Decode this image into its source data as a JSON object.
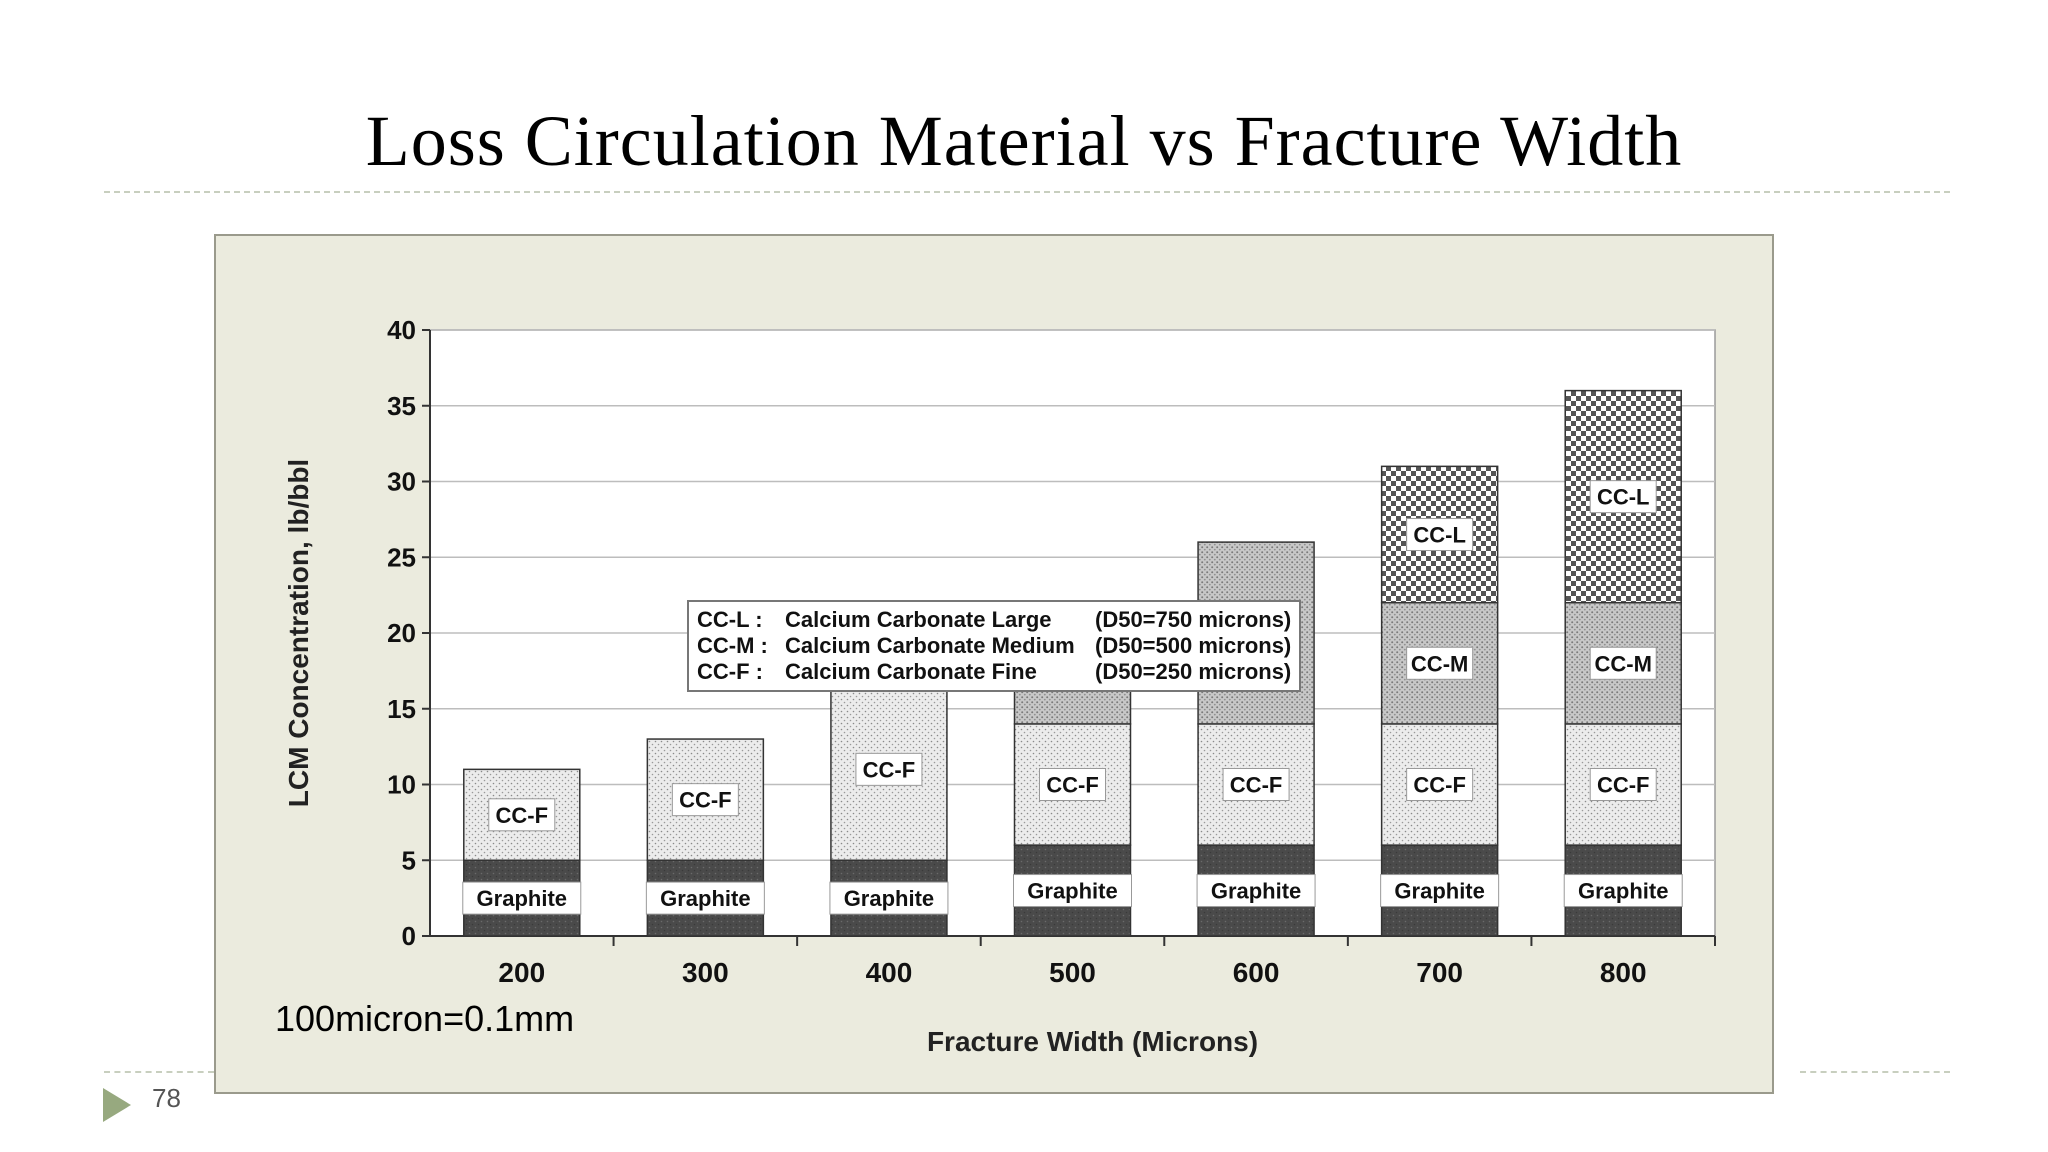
{
  "slide": {
    "title": "Loss Circulation Material vs Fracture Width",
    "page_number": "78",
    "note": "100micron=0.1mm"
  },
  "legend": {
    "rows": [
      {
        "code": "CC-L  :",
        "name": "Calcium Carbonate Large",
        "d50": "(D50=750 microns)"
      },
      {
        "code": "CC-M :",
        "name": "Calcium Carbonate Medium",
        "d50": "(D50=500 microns)"
      },
      {
        "code": "CC-F  :",
        "name": "Calcium Carbonate Fine",
        "d50": "(D50=250 microns)"
      }
    ]
  },
  "chart_data": {
    "type": "bar",
    "stacked": true,
    "title": "",
    "xlabel": "Fracture Width (Microns)",
    "ylabel": "LCM Concentration, lb/bbl",
    "ylim": [
      0,
      40
    ],
    "yticks": [
      0,
      5,
      10,
      15,
      20,
      25,
      30,
      35,
      40
    ],
    "grid": true,
    "legend_position": "top-left",
    "categories": [
      "200",
      "300",
      "400",
      "500",
      "600",
      "700",
      "800"
    ],
    "series": [
      {
        "name": "Graphite",
        "values": [
          5,
          5,
          5,
          6,
          6,
          6,
          6
        ]
      },
      {
        "name": "CC-F",
        "values": [
          6,
          8,
          12,
          8,
          8,
          8,
          8
        ]
      },
      {
        "name": "CC-M",
        "values": [
          0,
          0,
          0,
          8,
          12,
          8,
          8
        ]
      },
      {
        "name": "CC-L",
        "values": [
          0,
          0,
          0,
          0,
          0,
          9,
          14
        ]
      }
    ],
    "colors": {
      "panel": "#ebebde",
      "plot": "#ffffff",
      "graphite": "#4a4a4a",
      "cc_f": "#e4e4e4",
      "cc_m": "#b9b9b9",
      "cc_l": "#6d6d6d",
      "grid": "#bdbdbd"
    }
  }
}
